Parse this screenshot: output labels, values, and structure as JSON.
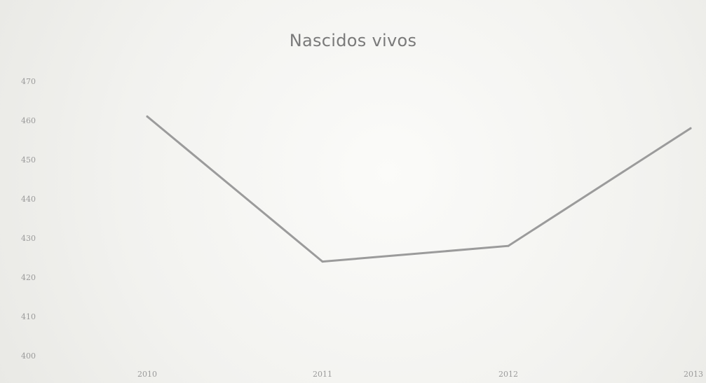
{
  "chart_data": {
    "type": "line",
    "title": "Nascidos vivos",
    "xlabel": "",
    "ylabel": "",
    "categories": [
      "2010",
      "2011",
      "2012",
      "2013"
    ],
    "series": [
      {
        "values": [
          461,
          424,
          428,
          458
        ]
      }
    ],
    "yticks": [
      "470",
      "460",
      "450",
      "440",
      "430",
      "420",
      "410",
      "400"
    ],
    "ylim": [
      400,
      470
    ],
    "grid": false,
    "legend": "none",
    "colors": {
      "line": "#9b9b9b",
      "text": "#9a9a9a",
      "title": "#7a7a7a"
    }
  }
}
